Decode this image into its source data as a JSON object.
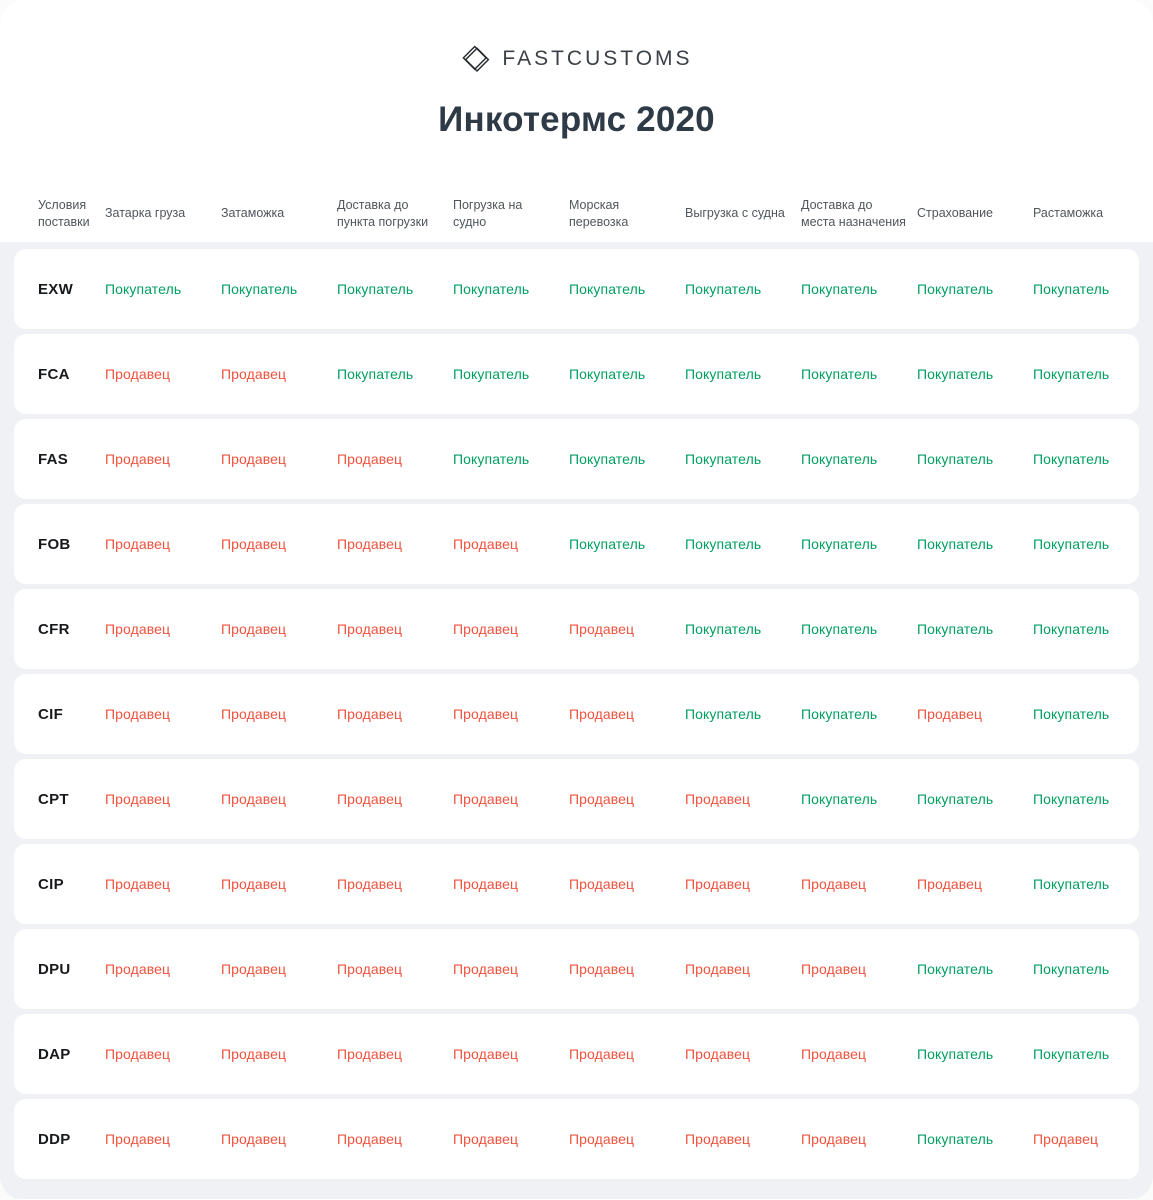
{
  "brand": {
    "name": "FASTCUSTOMS"
  },
  "page": {
    "title": "Инкотермс 2020"
  },
  "legend": {
    "buyer": "Покупатель",
    "seller": "Продавец"
  },
  "colors": {
    "buyer": "#009e60",
    "seller": "#f0523d",
    "title": "#2e3a45"
  },
  "table": {
    "columns": [
      "Условия поставки",
      "Затарка груза",
      "Затаможка",
      "Доставка до пункта погрузки",
      "Погрузка на судно",
      "Морская перевозка",
      "Выгрузка с судна",
      "Доставка до места назначения",
      "Страхование",
      "Растаможка"
    ],
    "rows": [
      {
        "code": "EXW",
        "values": [
          "buyer",
          "buyer",
          "buyer",
          "buyer",
          "buyer",
          "buyer",
          "buyer",
          "buyer",
          "buyer"
        ]
      },
      {
        "code": "FCA",
        "values": [
          "seller",
          "seller",
          "buyer",
          "buyer",
          "buyer",
          "buyer",
          "buyer",
          "buyer",
          "buyer"
        ]
      },
      {
        "code": "FAS",
        "values": [
          "seller",
          "seller",
          "seller",
          "buyer",
          "buyer",
          "buyer",
          "buyer",
          "buyer",
          "buyer"
        ]
      },
      {
        "code": "FOB",
        "values": [
          "seller",
          "seller",
          "seller",
          "seller",
          "buyer",
          "buyer",
          "buyer",
          "buyer",
          "buyer"
        ]
      },
      {
        "code": "CFR",
        "values": [
          "seller",
          "seller",
          "seller",
          "seller",
          "seller",
          "buyer",
          "buyer",
          "buyer",
          "buyer"
        ]
      },
      {
        "code": "CIF",
        "values": [
          "seller",
          "seller",
          "seller",
          "seller",
          "seller",
          "buyer",
          "buyer",
          "seller",
          "buyer"
        ]
      },
      {
        "code": "CPT",
        "values": [
          "seller",
          "seller",
          "seller",
          "seller",
          "seller",
          "seller",
          "buyer",
          "buyer",
          "buyer"
        ]
      },
      {
        "code": "CIP",
        "values": [
          "seller",
          "seller",
          "seller",
          "seller",
          "seller",
          "seller",
          "seller",
          "seller",
          "buyer"
        ]
      },
      {
        "code": "DPU",
        "values": [
          "seller",
          "seller",
          "seller",
          "seller",
          "seller",
          "seller",
          "seller",
          "buyer",
          "buyer"
        ]
      },
      {
        "code": "DAP",
        "values": [
          "seller",
          "seller",
          "seller",
          "seller",
          "seller",
          "seller",
          "seller",
          "buyer",
          "buyer"
        ]
      },
      {
        "code": "DDP",
        "values": [
          "seller",
          "seller",
          "seller",
          "seller",
          "seller",
          "seller",
          "seller",
          "buyer",
          "seller"
        ]
      }
    ]
  }
}
